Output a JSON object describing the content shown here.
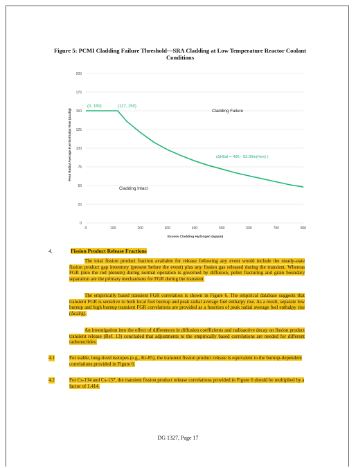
{
  "figure": {
    "title": "Figure 5:  PCMI Cladding Failure Threshold—SRA Cladding at Low Temperature Reactor Coolant Conditions"
  },
  "chart_data": {
    "type": "line",
    "title": "",
    "xlabel": "Excess Cladding Hydrogen (wppm)",
    "ylabel": "Peak Radial Average Fuel Enthalpy Rise (Δcal/g)",
    "xlim": [
      0,
      800
    ],
    "ylim": [
      0,
      200
    ],
    "x_ticks": [
      "0",
      "100",
      "200",
      "300",
      "400",
      "500",
      "600",
      "700",
      "800"
    ],
    "y_ticks": [
      "0",
      "25",
      "50",
      "75",
      "100",
      "125",
      "150",
      "175",
      "200"
    ],
    "grid": true,
    "line_color": "#22b573",
    "series": [
      {
        "x": [
          0,
          117,
          150,
          200,
          250,
          300,
          350,
          400,
          450,
          500,
          550,
          600,
          650,
          700,
          750,
          800
        ],
        "y": [
          150,
          150,
          136,
          121,
          108,
          98,
          90,
          83,
          77,
          72,
          67,
          63,
          59,
          55,
          51,
          48
        ]
      }
    ],
    "annotations": {
      "point1": "(0, 150)",
      "point2": "(117, 150)",
      "equation": "(ΔHfail = 406 - 53.06ln(Hex) )",
      "failure_region": "Cladding Failure",
      "intact_region": "Cladding Intact"
    }
  },
  "section": {
    "number": "4.",
    "title": "Fission Product Release Fractions",
    "paragraphs": [
      "The total fission product fraction available for release following any event would include the steady-state fission product gap inventory (present before the event) plus any fission gas released during the transient. Whereas FGR (into the rod plenum) during normal operation is governed by diffusion, pellet fracturing and grain boundary separation are the primary mechanisms for FGR during the transient.",
      "The empirically based transient FGR correlation is shown in Figure 6. The empirical database suggests that transient FGR is sensitive to both local fuel burnup and peak radial average fuel enthalpy rise. As a result, separate low burnup and high burnup transient FGR correlations are provided as a function of peak radial average fuel enthalpy rise (Δcal/g).",
      "An investigation into the effect of differences in diffusion coefficients and radioactive decay on fission product transient release (Ref. 13) concluded that adjustments to the empirically based correlations are needed for different radionuclides."
    ],
    "items": [
      {
        "num": "4.1",
        "text": "For stable, long-lived isotopes (e.g., Kr-85), the transient fission product release is equivalent to the burnup-dependent correlations provided in Figure 6."
      },
      {
        "num": "4.2",
        "text": "For Cs-134 and Cs-137, the transient fission product release correlations provided in Figure 6 should be multiplied by a factor of 1.414."
      }
    ]
  },
  "footer": "DG 1327, Page 17",
  "colors": {
    "highlight": "#f5c518",
    "curve": "#22b573"
  }
}
